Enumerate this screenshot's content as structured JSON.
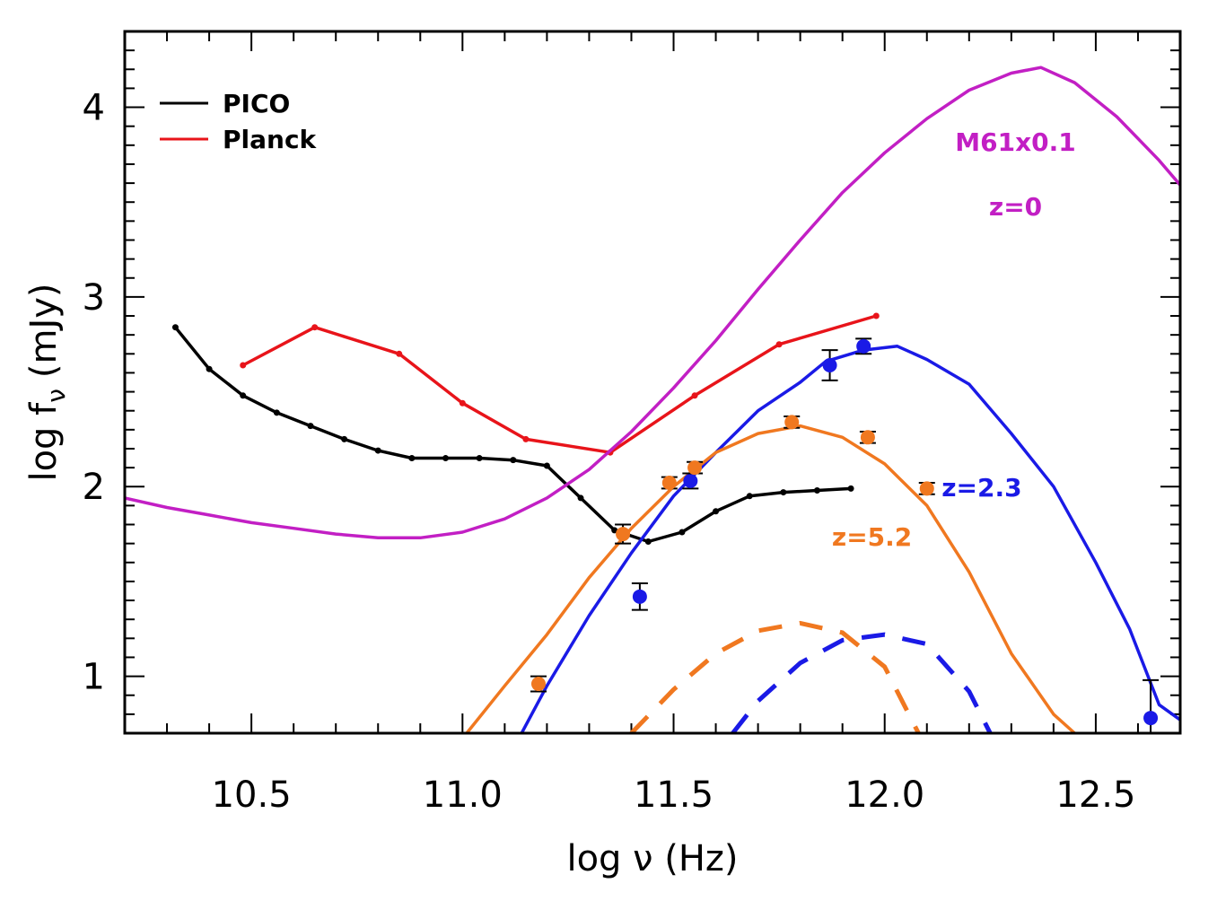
{
  "chart_data": {
    "type": "line",
    "xlabel": "log ν (Hz)",
    "ylabel": "log f",
    "ylabel_sub": "ν",
    "ylabel_unit": "(mJy)",
    "xlim": [
      10.2,
      12.7
    ],
    "ylim": [
      0.7,
      4.4
    ],
    "x_ticks": [
      10.5,
      11.0,
      11.5,
      12.0,
      12.5
    ],
    "x_tick_labels": [
      "10.5",
      "11.0",
      "11.5",
      "12.0",
      "12.5"
    ],
    "y_ticks": [
      1,
      2,
      3,
      4
    ],
    "y_tick_labels": [
      "1",
      "2",
      "3",
      "4"
    ],
    "legend_placement": "top-left",
    "legend": [
      {
        "label": "PICO",
        "color": "#000000"
      },
      {
        "label": "Planck",
        "color": "#e8141a"
      }
    ],
    "annotations": [
      {
        "text": "M61x0.1",
        "color": "#c21fc4",
        "x": 12.31,
        "y": 3.77
      },
      {
        "text": "z=0",
        "color": "#c21fc4",
        "x": 12.31,
        "y": 3.43
      },
      {
        "text": "z=2.3",
        "color": "#1a1ae6",
        "x": 12.23,
        "y": 1.95
      },
      {
        "text": "z=5.2",
        "color": "#f07820",
        "x": 11.97,
        "y": 1.69
      }
    ],
    "series": [
      {
        "key": "pico",
        "color": "#000000",
        "style": "solid",
        "markers": true,
        "x": [
          10.32,
          10.4,
          10.48,
          10.56,
          10.64,
          10.72,
          10.8,
          10.88,
          10.96,
          11.04,
          11.12,
          11.2,
          11.28,
          11.36,
          11.44,
          11.52,
          11.6,
          11.68,
          11.76,
          11.84,
          11.92
        ],
        "y": [
          2.84,
          2.62,
          2.48,
          2.39,
          2.32,
          2.25,
          2.19,
          2.15,
          2.15,
          2.15,
          2.14,
          2.11,
          1.94,
          1.77,
          1.71,
          1.76,
          1.87,
          1.95,
          1.97,
          1.98,
          1.99
        ]
      },
      {
        "key": "planck",
        "color": "#e8141a",
        "style": "solid",
        "markers": true,
        "x": [
          10.48,
          10.65,
          10.85,
          11.0,
          11.15,
          11.35,
          11.55,
          11.75,
          11.98
        ],
        "y": [
          2.64,
          2.84,
          2.7,
          2.44,
          2.25,
          2.18,
          2.48,
          2.75,
          2.9
        ]
      },
      {
        "key": "m61",
        "color": "#c21fc4",
        "style": "solid",
        "markers": false,
        "x": [
          10.2,
          10.3,
          10.4,
          10.5,
          10.6,
          10.7,
          10.8,
          10.9,
          11.0,
          11.1,
          11.2,
          11.3,
          11.4,
          11.5,
          11.6,
          11.7,
          11.8,
          11.9,
          12.0,
          12.1,
          12.2,
          12.3,
          12.37,
          12.45,
          12.55,
          12.65,
          12.7
        ],
        "y": [
          1.94,
          1.89,
          1.85,
          1.81,
          1.78,
          1.75,
          1.73,
          1.73,
          1.76,
          1.83,
          1.94,
          2.09,
          2.29,
          2.52,
          2.77,
          3.04,
          3.3,
          3.55,
          3.76,
          3.94,
          4.09,
          4.18,
          4.21,
          4.13,
          3.95,
          3.72,
          3.59
        ]
      },
      {
        "key": "z23_model",
        "color": "#1a1ae6",
        "style": "solid",
        "markers": false,
        "x": [
          11.14,
          11.2,
          11.3,
          11.4,
          11.5,
          11.6,
          11.7,
          11.8,
          11.86,
          11.95,
          12.03,
          12.1,
          12.2,
          12.3,
          12.4,
          12.5,
          12.58,
          12.65,
          12.7
        ],
        "y": [
          0.7,
          0.95,
          1.32,
          1.65,
          1.95,
          2.18,
          2.4,
          2.55,
          2.66,
          2.72,
          2.74,
          2.67,
          2.54,
          2.28,
          2.0,
          1.6,
          1.25,
          0.85,
          0.77
        ]
      },
      {
        "key": "z52_model",
        "color": "#f07820",
        "style": "solid",
        "markers": false,
        "x": [
          11.01,
          11.1,
          11.2,
          11.3,
          11.4,
          11.5,
          11.6,
          11.7,
          11.8,
          11.9,
          12.0,
          12.1,
          12.2,
          12.3,
          12.4,
          12.45
        ],
        "y": [
          0.7,
          0.95,
          1.22,
          1.52,
          1.78,
          2.0,
          2.18,
          2.28,
          2.32,
          2.26,
          2.12,
          1.9,
          1.55,
          1.12,
          0.8,
          0.7
        ]
      },
      {
        "key": "z23_dashed",
        "color": "#1a1ae6",
        "style": "dashed",
        "markers": false,
        "x": [
          11.64,
          11.7,
          11.8,
          11.9,
          12.0,
          12.1,
          12.2,
          12.25
        ],
        "y": [
          0.7,
          0.87,
          1.07,
          1.19,
          1.22,
          1.17,
          0.92,
          0.7
        ]
      },
      {
        "key": "z52_dashed",
        "color": "#f07820",
        "style": "dashed",
        "markers": false,
        "x": [
          11.4,
          11.5,
          11.6,
          11.7,
          11.8,
          11.9,
          12.0,
          12.08
        ],
        "y": [
          0.7,
          0.93,
          1.12,
          1.24,
          1.28,
          1.23,
          1.05,
          0.7
        ]
      },
      {
        "key": "z23_points",
        "color": "#1a1ae6",
        "style": "points",
        "markers": true,
        "x": [
          11.42,
          11.54,
          11.87,
          11.95,
          12.63
        ],
        "y": [
          1.42,
          2.03,
          2.64,
          2.74,
          0.78
        ],
        "err": [
          0.07,
          0.04,
          0.08,
          0.04,
          0.2
        ]
      },
      {
        "key": "z52_points",
        "color": "#f07820",
        "style": "points",
        "markers": true,
        "x": [
          11.18,
          11.38,
          11.49,
          11.55,
          11.78,
          11.96,
          12.1
        ],
        "y": [
          0.96,
          1.75,
          2.02,
          2.1,
          2.34,
          2.26,
          1.99
        ],
        "err": [
          0.04,
          0.05,
          0.03,
          0.03,
          0.03,
          0.03,
          0.03
        ]
      }
    ]
  }
}
